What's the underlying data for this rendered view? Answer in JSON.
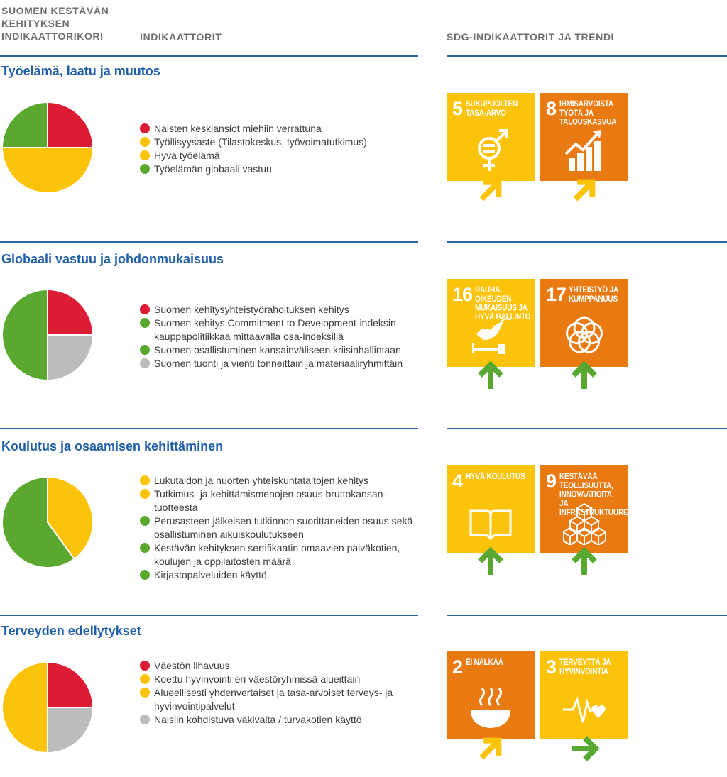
{
  "header": {
    "col1": "SUOMEN KESTÄVÄN KEHITYKSEN INDIKAATTORIKORI",
    "col2": "INDIKAATTORIT",
    "col3": "SDG-INDIKAATTORIT JA TRENDI"
  },
  "colors": {
    "rule": "#2a64a6",
    "title": "#1f5ea8",
    "red": "#dc1c35",
    "yellow": "#fcc30b",
    "green": "#5aa82f",
    "gray": "#bcbcbc",
    "sdg_yellow": "#fcc30b",
    "sdg_orange": "#e97a12",
    "trend_yellow": "#fcc30b",
    "trend_green": "#59a832"
  },
  "sections": [
    {
      "title": "Työelämä, laatu ja muutos",
      "pie_shares": {
        "red": 0.25,
        "yellow": 0.5,
        "green": 0.25,
        "gray": 0
      },
      "indicators": [
        {
          "status": "red",
          "text": "Naisten keskiansiot miehiin verrattuna"
        },
        {
          "status": "yellow",
          "text": "Työllisyysaste (Tilastokeskus, työvoimatutkimus)"
        },
        {
          "status": "yellow",
          "text": "Hyvä työelämä"
        },
        {
          "status": "green",
          "text": "Työelämän globaali vastuu"
        }
      ],
      "sdgs": [
        {
          "number": "5",
          "label": "SUKUPUOLTEN TASA-ARVO",
          "color": "yellow",
          "icon": "gender-equality-icon",
          "trend": "up-right"
        },
        {
          "number": "8",
          "label": "IHMISARVOISTA TYÖTÄ JA TALOUSKASVUA",
          "color": "orange",
          "icon": "growth-chart-icon",
          "trend": "up-right"
        }
      ]
    },
    {
      "title": "Globaali vastuu ja johdonmukaisuus",
      "pie_shares": {
        "red": 0.25,
        "yellow": 0,
        "green": 0.5,
        "gray": 0.25
      },
      "indicators": [
        {
          "status": "red",
          "text": "Suomen kehitysyhteistyörahoituksen kehitys"
        },
        {
          "status": "green",
          "text": "Suomen kehitys Commitment to Development-indeksin kauppapolitiikkaa mittaavalla osa-indeksillä"
        },
        {
          "status": "green",
          "text": "Suomen osallistuminen kansainväliseen kriisinhallintaan"
        },
        {
          "status": "gray",
          "text": "Suomen tuonti ja vienti tonneittain ja materiaaliryhmittäin"
        }
      ],
      "sdgs": [
        {
          "number": "16",
          "label": "RAUHA, OIKEUDEN-MUKAISUUS JA HYVÄ HALLINTO",
          "color": "yellow",
          "icon": "dove-gavel-icon",
          "trend": "up"
        },
        {
          "number": "17",
          "label": "YHTEISTYÖ JA KUMPPANUUS",
          "color": "orange",
          "icon": "partnership-rings-icon",
          "trend": "up"
        }
      ]
    },
    {
      "title": "Koulutus ja osaamisen kehittäminen",
      "pie_shares": {
        "red": 0,
        "yellow": 0.4,
        "green": 0.6,
        "gray": 0
      },
      "indicators": [
        {
          "status": "yellow",
          "text": "Lukutaidon ja nuorten yhteiskuntataitojen kehitys"
        },
        {
          "status": "yellow",
          "text": "Tutkimus- ja kehittämismenojen osuus bruttokansan-tuotteesta"
        },
        {
          "status": "green",
          "text": "Perusasteen jälkeisen tutkinnon suorittaneiden osuus sekä osallistuminen aikuiskoulutukseen"
        },
        {
          "status": "green",
          "text": "Kestävän kehityksen sertifikaatin omaavien päiväkotien, koulujen ja oppilaitosten määrä"
        },
        {
          "status": "green",
          "text": "Kirjastopalveluiden käyttö"
        }
      ],
      "sdgs": [
        {
          "number": "4",
          "label": "HYVÄ KOULUTUS",
          "color": "yellow",
          "icon": "book-pencil-icon",
          "trend": "up"
        },
        {
          "number": "9",
          "label": "KESTÄVÄÄ TEOLLISUUTTA, INNOVAATIOITA JA INFRASTRUKTUUREJA",
          "color": "orange",
          "icon": "cubes-icon",
          "trend": "up"
        }
      ]
    },
    {
      "title": "Terveyden edellytykset",
      "pie_shares": {
        "red": 0.25,
        "yellow": 0.5,
        "green": 0,
        "gray": 0.25
      },
      "indicators": [
        {
          "status": "red",
          "text": "Väestön lihavuus"
        },
        {
          "status": "yellow",
          "text": "Koettu hyvinvointi eri väestöryhmissä alueittain"
        },
        {
          "status": "yellow",
          "text": "Alueellisesti yhdenvertaiset ja tasa-arvoiset terveys- ja hyvinvointipalvelut"
        },
        {
          "status": "gray",
          "text": "Naisiin kohdistuva väkivalta / turvakotien käyttö"
        }
      ],
      "sdgs": [
        {
          "number": "2",
          "label": "EI NÄLKÄÄ",
          "color": "orange",
          "icon": "food-bowl-icon",
          "trend": "up-right"
        },
        {
          "number": "3",
          "label": "TERVEYTTÄ JA HYVINVOINTIA",
          "color": "yellow",
          "icon": "heartbeat-icon",
          "trend": "right"
        }
      ]
    }
  ]
}
